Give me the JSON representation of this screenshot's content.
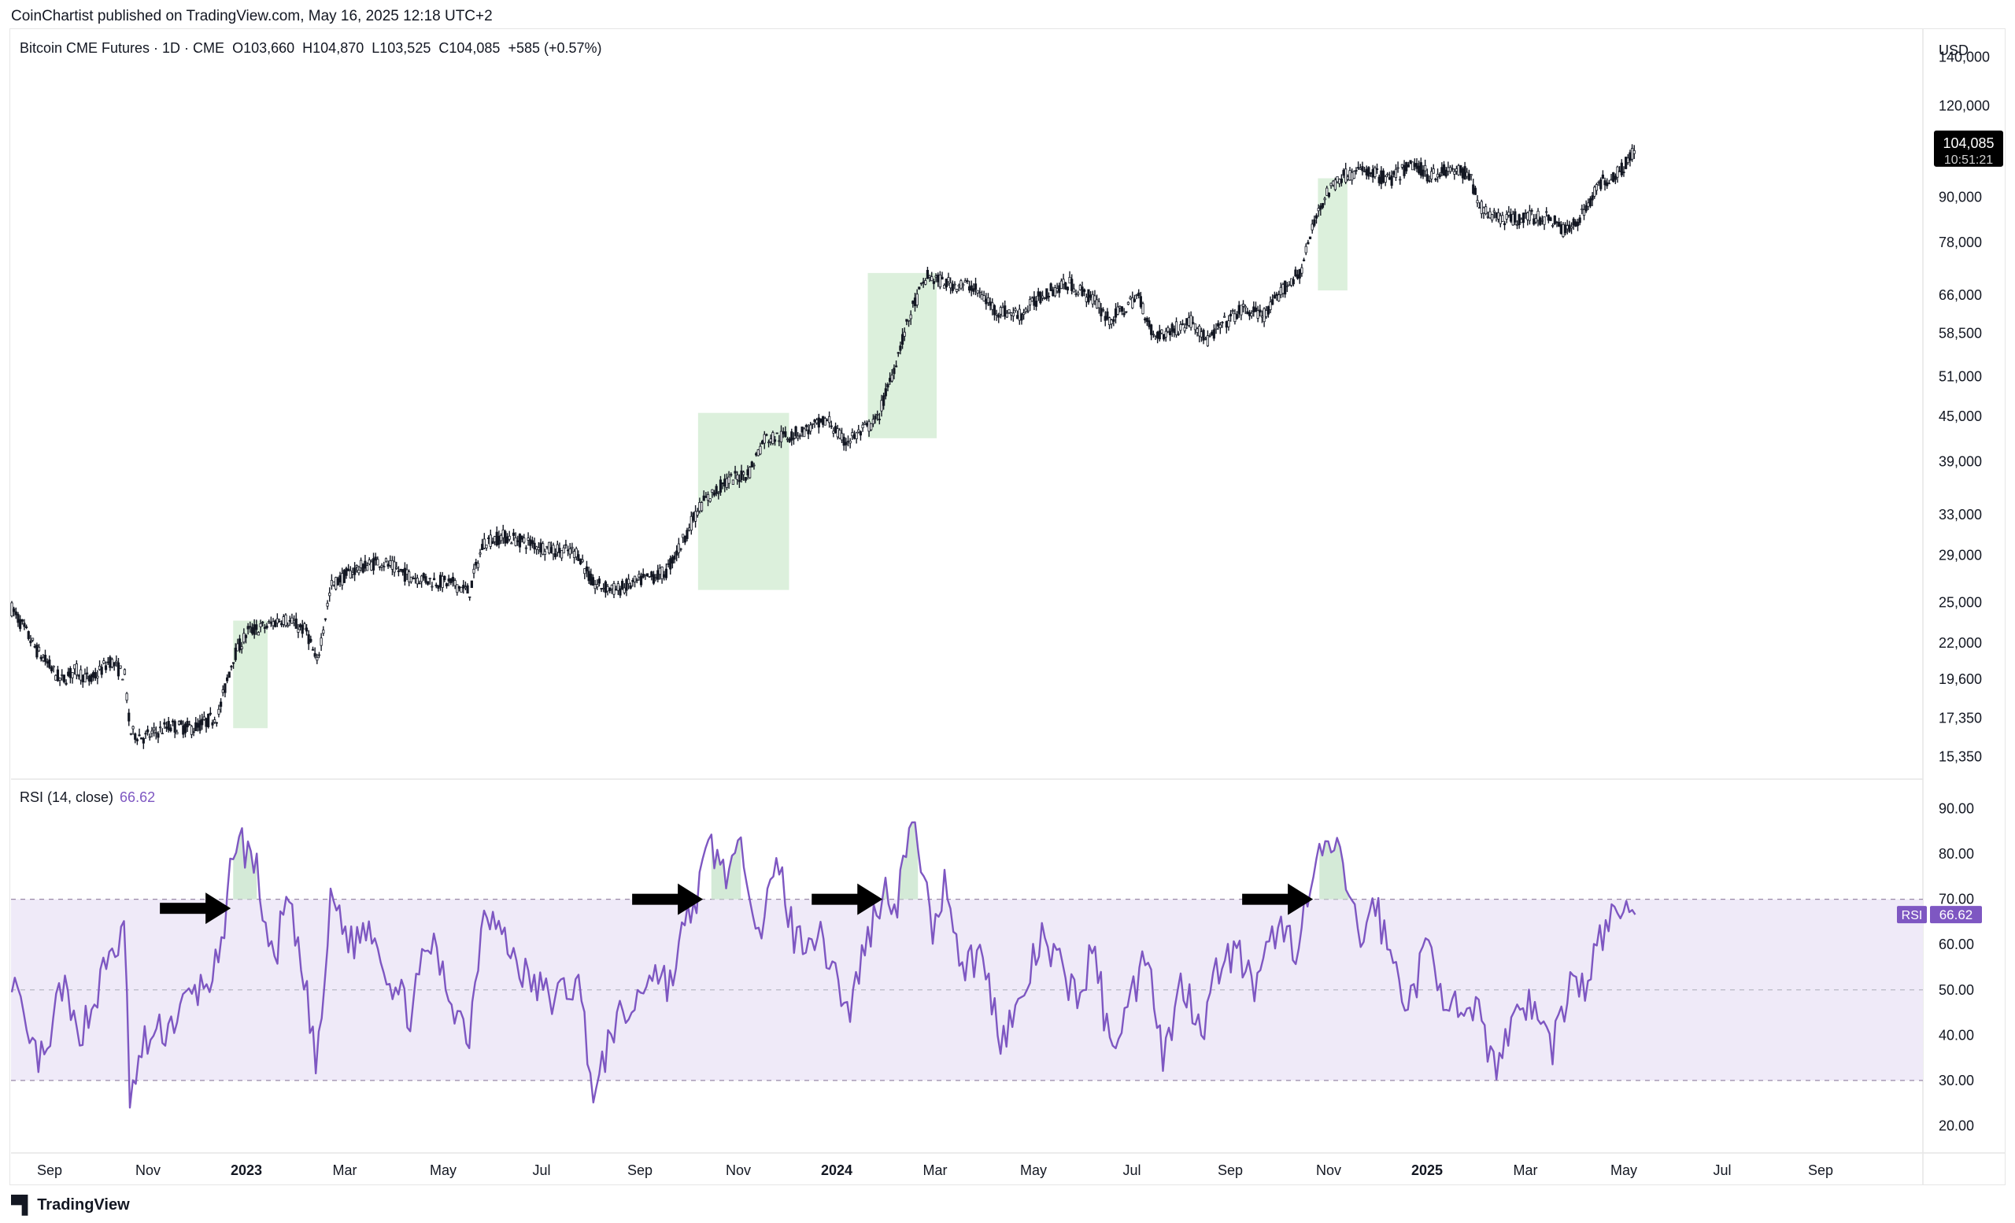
{
  "header": {
    "publisher_line": "CoinChartist published on TradingView.com, May 16, 2025 12:18 UTC+2"
  },
  "footer": {
    "brand": "TradingView"
  },
  "colors": {
    "rsi_line": "#7e57c2",
    "rsi_band": "#efeaf8",
    "highlight": "#dcf0dc",
    "candle": "#131722",
    "grid": "#e6e6e6"
  },
  "chart_data": [
    {
      "type": "candlestick",
      "title": "Bitcoin CME Futures · 1D · CME",
      "legend": {
        "instrument": "Bitcoin CME Futures · 1D · CME",
        "open": "O103,660",
        "high": "H104,870",
        "low": "L103,525",
        "close": "C104,085",
        "change": "+585 (+0.57%)"
      },
      "y_scale": "log",
      "ylim": [
        14300,
        150000
      ],
      "y_axis_unit": "USD",
      "y_ticks": [
        "140,000",
        "120,000",
        "90,000",
        "78,000",
        "66,000",
        "58,500",
        "51,000",
        "45,000",
        "39,000",
        "33,000",
        "29,000",
        "25,000",
        "22,000",
        "19,600",
        "17,350",
        "15,350"
      ],
      "y_tick_values": [
        140000,
        120000,
        90000,
        78000,
        66000,
        58500,
        51000,
        45000,
        39000,
        33000,
        29000,
        25000,
        22000,
        19600,
        17350,
        15350
      ],
      "last_price_label": "104,085",
      "countdown_label": "10:51:21",
      "x_months": [
        "Sep",
        "Nov",
        "2023",
        "Mar",
        "May",
        "Jul",
        "Sep",
        "Nov",
        "2024",
        "Mar",
        "May",
        "Jul",
        "Sep",
        "Nov",
        "2025",
        "Mar",
        "May",
        "Jul",
        "Sep"
      ],
      "x_month_index": [
        0,
        2,
        4,
        6,
        8,
        10,
        12,
        14,
        16,
        18,
        20,
        22,
        24,
        26,
        28,
        30,
        32,
        34,
        36
      ],
      "x_start_month": 0,
      "x_end_month": 38,
      "price_path": [
        [
          0.0,
          24500
        ],
        [
          0.5,
          21500
        ],
        [
          1.0,
          19500
        ],
        [
          1.3,
          20200
        ],
        [
          1.6,
          19500
        ],
        [
          2.0,
          20800
        ],
        [
          2.3,
          19800
        ],
        [
          2.4,
          16600
        ],
        [
          2.7,
          16300
        ],
        [
          3.2,
          16900
        ],
        [
          3.7,
          16800
        ],
        [
          4.2,
          17500
        ],
        [
          4.5,
          21000
        ],
        [
          4.8,
          22800
        ],
        [
          5.2,
          23200
        ],
        [
          5.5,
          23800
        ],
        [
          6.0,
          22800
        ],
        [
          6.2,
          20500
        ],
        [
          6.5,
          26400
        ],
        [
          7.0,
          27800
        ],
        [
          7.5,
          28500
        ],
        [
          8.0,
          27300
        ],
        [
          8.5,
          26800
        ],
        [
          9.0,
          26500
        ],
        [
          9.3,
          25800
        ],
        [
          9.6,
          30300
        ],
        [
          10.0,
          30800
        ],
        [
          10.5,
          30200
        ],
        [
          11.0,
          29500
        ],
        [
          11.5,
          29300
        ],
        [
          11.8,
          26500
        ],
        [
          12.3,
          26000
        ],
        [
          12.8,
          26800
        ],
        [
          13.3,
          27500
        ],
        [
          13.6,
          30000
        ],
        [
          14.0,
          34000
        ],
        [
          14.5,
          36500
        ],
        [
          15.0,
          37800
        ],
        [
          15.3,
          42000
        ],
        [
          15.8,
          42300
        ],
        [
          16.3,
          43500
        ],
        [
          16.6,
          44500
        ],
        [
          16.9,
          41500
        ],
        [
          17.2,
          42500
        ],
        [
          17.6,
          44500
        ],
        [
          17.9,
          51500
        ],
        [
          18.3,
          63000
        ],
        [
          18.6,
          70000
        ],
        [
          19.0,
          68500
        ],
        [
          19.5,
          68000
        ],
        [
          20.0,
          63000
        ],
        [
          20.5,
          62000
        ],
        [
          21.0,
          66500
        ],
        [
          21.5,
          68500
        ],
        [
          22.0,
          65000
        ],
        [
          22.3,
          61000
        ],
        [
          22.6,
          63000
        ],
        [
          22.9,
          66000
        ],
        [
          23.2,
          58000
        ],
        [
          23.6,
          59000
        ],
        [
          24.0,
          61000
        ],
        [
          24.3,
          57000
        ],
        [
          24.6,
          60000
        ],
        [
          25.0,
          63000
        ],
        [
          25.5,
          62000
        ],
        [
          25.9,
          68000
        ],
        [
          26.2,
          71000
        ],
        [
          26.6,
          88000
        ],
        [
          27.0,
          96000
        ],
        [
          27.5,
          98000
        ],
        [
          28.0,
          95000
        ],
        [
          28.5,
          100000
        ],
        [
          28.8,
          96500
        ],
        [
          29.2,
          98000
        ],
        [
          29.6,
          97000
        ],
        [
          29.9,
          86000
        ],
        [
          30.4,
          84000
        ],
        [
          30.9,
          84500
        ],
        [
          31.3,
          84000
        ],
        [
          31.6,
          80500
        ],
        [
          31.9,
          85000
        ],
        [
          32.3,
          94000
        ],
        [
          32.7,
          98000
        ],
        [
          33.0,
          104085
        ]
      ],
      "highlight_zones": [
        {
          "x0": 4.5,
          "x1": 5.2,
          "y0": 16800,
          "y1": 23600
        },
        {
          "x0": 13.95,
          "x1": 15.8,
          "y0": 26000,
          "y1": 45500
        },
        {
          "x0": 17.4,
          "x1": 18.8,
          "y0": 42000,
          "y1": 70800
        },
        {
          "x0": 26.55,
          "x1": 27.15,
          "y0": 67000,
          "y1": 95500
        }
      ]
    },
    {
      "type": "line",
      "title": "RSI (14, close)",
      "legend": {
        "label": "RSI (14, close)",
        "value": "66.62"
      },
      "series": [
        {
          "name": "RSI",
          "color": "#7e57c2"
        }
      ],
      "ylim": [
        14,
        96
      ],
      "y_ticks": [
        "90.00",
        "80.00",
        "70.00",
        "60.00",
        "50.00",
        "40.00",
        "30.00",
        "20.00"
      ],
      "y_tick_values": [
        90,
        80,
        70,
        60,
        50,
        40,
        30,
        20
      ],
      "levels": {
        "overbought": 70,
        "middle": 50,
        "oversold": 30
      },
      "current_label": "RSI",
      "current_value": "66.62",
      "rsi_path": [
        [
          0.0,
          54
        ],
        [
          0.3,
          38
        ],
        [
          0.7,
          33
        ],
        [
          1.0,
          52
        ],
        [
          1.3,
          40
        ],
        [
          1.6,
          45
        ],
        [
          2.0,
          58
        ],
        [
          2.3,
          62
        ],
        [
          2.4,
          25
        ],
        [
          2.7,
          38
        ],
        [
          3.2,
          42
        ],
        [
          3.6,
          48
        ],
        [
          4.0,
          52
        ],
        [
          4.3,
          58
        ],
        [
          4.5,
          83
        ],
        [
          4.7,
          82
        ],
        [
          4.95,
          78
        ],
        [
          5.3,
          55
        ],
        [
          5.6,
          70
        ],
        [
          6.1,
          42
        ],
        [
          6.2,
          31
        ],
        [
          6.5,
          71
        ],
        [
          6.9,
          60
        ],
        [
          7.3,
          65
        ],
        [
          7.7,
          52
        ],
        [
          8.1,
          45
        ],
        [
          8.5,
          61
        ],
        [
          8.9,
          49
        ],
        [
          9.3,
          40
        ],
        [
          9.6,
          70
        ],
        [
          10.0,
          61
        ],
        [
          10.5,
          52
        ],
        [
          11.0,
          48
        ],
        [
          11.5,
          52
        ],
        [
          11.7,
          38
        ],
        [
          11.85,
          25
        ],
        [
          12.2,
          42
        ],
        [
          12.6,
          45
        ],
        [
          13.0,
          55
        ],
        [
          13.4,
          51
        ],
        [
          13.6,
          61
        ],
        [
          13.9,
          70
        ],
        [
          14.2,
          82
        ],
        [
          14.5,
          76
        ],
        [
          14.9,
          80
        ],
        [
          15.2,
          63
        ],
        [
          15.6,
          78
        ],
        [
          15.9,
          61
        ],
        [
          16.3,
          63
        ],
        [
          16.7,
          56
        ],
        [
          17.0,
          44
        ],
        [
          17.3,
          58
        ],
        [
          17.7,
          72
        ],
        [
          18.0,
          70
        ],
        [
          18.2,
          83
        ],
        [
          18.4,
          86
        ],
        [
          18.7,
          62
        ],
        [
          19.0,
          75
        ],
        [
          19.3,
          55
        ],
        [
          19.7,
          58
        ],
        [
          20.1,
          40
        ],
        [
          20.5,
          46
        ],
        [
          20.9,
          61
        ],
        [
          21.3,
          55
        ],
        [
          21.7,
          48
        ],
        [
          22.0,
          60
        ],
        [
          22.3,
          38
        ],
        [
          22.7,
          46
        ],
        [
          23.1,
          60
        ],
        [
          23.4,
          35
        ],
        [
          23.8,
          52
        ],
        [
          24.2,
          42
        ],
        [
          24.6,
          58
        ],
        [
          25.0,
          57
        ],
        [
          25.3,
          49
        ],
        [
          25.7,
          64
        ],
        [
          26.1,
          60
        ],
        [
          26.4,
          72
        ],
        [
          26.7,
          82
        ],
        [
          26.9,
          80
        ],
        [
          27.1,
          76
        ],
        [
          27.4,
          60
        ],
        [
          27.7,
          70
        ],
        [
          28.0,
          58
        ],
        [
          28.4,
          47
        ],
        [
          28.8,
          60
        ],
        [
          29.1,
          50
        ],
        [
          29.5,
          42
        ],
        [
          29.9,
          45
        ],
        [
          30.1,
          32
        ],
        [
          30.4,
          41
        ],
        [
          30.7,
          48
        ],
        [
          31.0,
          45
        ],
        [
          31.3,
          37
        ],
        [
          31.7,
          52
        ],
        [
          32.0,
          50
        ],
        [
          32.3,
          62
        ],
        [
          32.6,
          66
        ],
        [
          32.8,
          70
        ],
        [
          33.0,
          66.62
        ]
      ],
      "overbought_fill_zones": [
        [
          4.5,
          5.0
        ],
        [
          14.2,
          14.85
        ],
        [
          17.7,
          18.45
        ],
        [
          26.55,
          27.2
        ]
      ],
      "annotations": [
        {
          "type": "arrow",
          "x_tip": 4.45,
          "y": 68
        },
        {
          "type": "arrow",
          "x_tip": 14.05,
          "y": 70
        },
        {
          "type": "arrow",
          "x_tip": 17.7,
          "y": 70
        },
        {
          "type": "arrow",
          "x_tip": 26.45,
          "y": 70
        }
      ]
    }
  ]
}
